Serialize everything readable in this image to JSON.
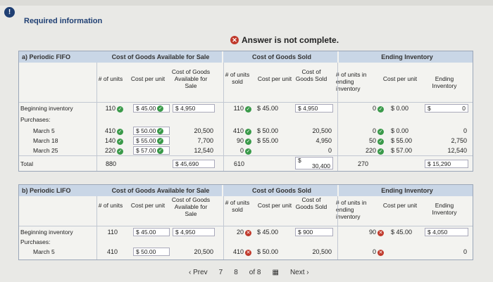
{
  "required_label": "Required information",
  "answer_status": "Answer is not complete.",
  "fifo": {
    "part_label": "a) Periodic FIFO",
    "group_available": "Cost of Goods Available for Sale",
    "group_sold": "Cost of Goods Sold",
    "group_ending": "Ending Inventory",
    "cols": {
      "units": "# of units",
      "cost_per_unit": "Cost per unit",
      "cost_available": "Cost of Goods Available for Sale",
      "units_sold": "# of units sold",
      "cost_per_unit_sold": "Cost per unit",
      "cost_sold": "Cost of Goods Sold",
      "units_ending": "# of units in ending inventory",
      "cost_per_unit_ending": "Cost per unit",
      "ending_inventory": "Ending Inventory"
    },
    "rows": {
      "beginning": {
        "label": "Beginning inventory",
        "units": "110",
        "cpu": "$ 45.00",
        "cga": "$ 4,950",
        "us": "110",
        "cpus": "$ 45.00",
        "cgs": "$ 4,950",
        "ue": "0",
        "cpue": "$ 0.00",
        "ei": "0",
        "ei_sign": "$"
      },
      "purchases_label": "Purchases:",
      "mar5": {
        "label": "March 5",
        "units": "410",
        "cpu": "$ 50.00",
        "cga": "20,500",
        "us": "410",
        "cpus": "$ 50.00",
        "cgs": "20,500",
        "ue": "0",
        "cpue": "$ 0.00",
        "ei": "0"
      },
      "mar18": {
        "label": "March 18",
        "units": "140",
        "cpu": "$ 55.00",
        "cga": "7,700",
        "us": "90",
        "cpus": "$ 55.00",
        "cgs": "4,950",
        "ue": "50",
        "cpue": "$ 55.00",
        "ei": "2,750"
      },
      "mar25": {
        "label": "March 25",
        "units": "220",
        "cpu": "$ 57.00",
        "cga": "12,540",
        "us": "0",
        "cgs": "0",
        "ue": "220",
        "cpue": "$ 57.00",
        "ei": "12,540"
      },
      "total": {
        "label": "Total",
        "units": "880",
        "cga": "$ 45,690",
        "us": "610",
        "cgs_sign": "$",
        "cgs": "30,400",
        "ue": "270",
        "ei": "$ 15,290"
      }
    }
  },
  "lifo": {
    "part_label": "b) Periodic LIFO",
    "group_available": "Cost of Goods Available for Sale",
    "group_sold": "Cost of Goods Sold",
    "group_ending": "Ending Inventory",
    "cols": {
      "units": "# of units",
      "cost_per_unit": "Cost per unit",
      "cost_available": "Cost of Goods Available for Sale",
      "units_sold": "# of units sold",
      "cost_per_unit_sold": "Cost per unit",
      "cost_sold": "Cost of Goods Sold",
      "units_ending": "# of units in ending inventory",
      "cost_per_unit_ending": "Cost per unit",
      "ending_inventory": "Ending Inventory"
    },
    "rows": {
      "beginning": {
        "label": "Beginning inventory",
        "units": "110",
        "cpu": "$ 45.00",
        "cga": "$ 4,950",
        "us": "20",
        "cpus": "$ 45.00",
        "cgs": "$ 900",
        "ue": "90",
        "cpue": "$ 45.00",
        "ei": "$ 4,050"
      },
      "purchases_label": "Purchases:",
      "mar5": {
        "label": "March 5",
        "units": "410",
        "cpu": "$ 50.00",
        "cga": "20,500",
        "us": "410",
        "cpus": "$ 50.00",
        "cgs": "20,500",
        "ue": "0",
        "ei": "0"
      }
    }
  },
  "pager": {
    "prev": "Prev",
    "p7": "7",
    "p8": "8",
    "of": "of 8",
    "next": "Next"
  }
}
